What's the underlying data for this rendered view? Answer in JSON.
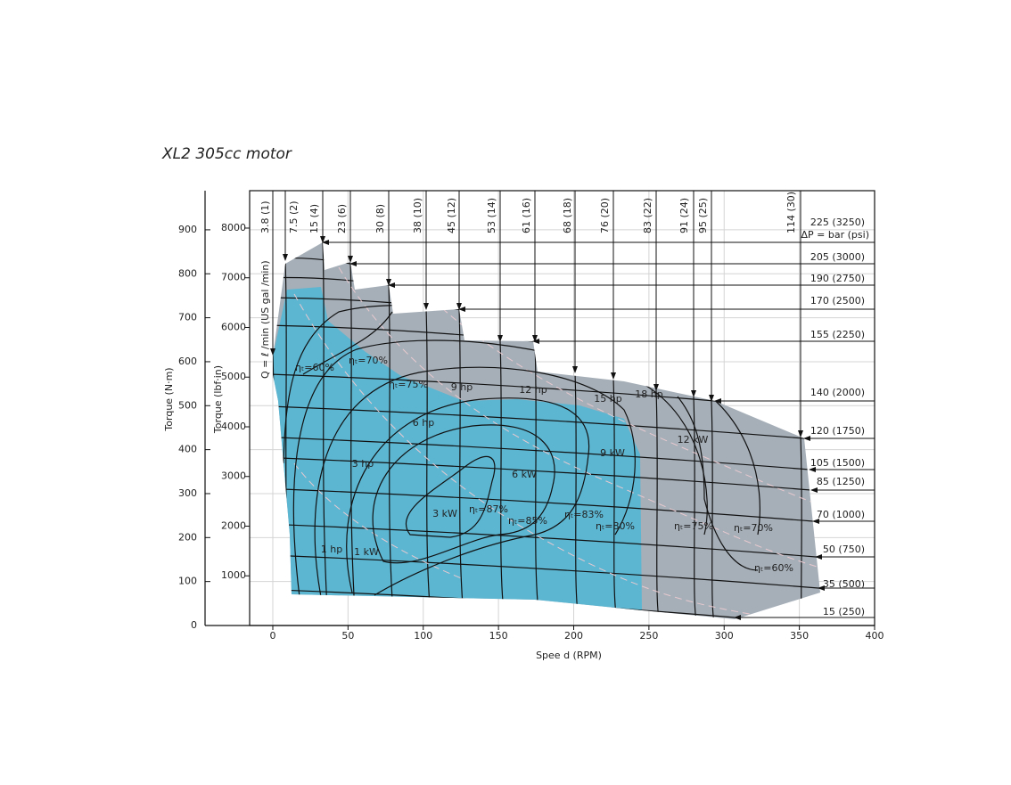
{
  "chart_data": {
    "type": "performance-map",
    "title": "XL2 305cc motor",
    "x_label": "Spee d (RPM)",
    "y_label": "Torque (N·m)",
    "y2_label": "Torque (lbf·in)",
    "xlim": [
      -15.4,
      400
    ],
    "xticks": [
      0,
      50,
      100,
      150,
      200,
      250,
      300,
      350,
      400
    ],
    "ylim": [
      0,
      989
    ],
    "yticks": [
      0,
      100,
      200,
      300,
      400,
      500,
      600,
      700,
      800,
      900
    ],
    "y2lim": [
      0,
      8753
    ],
    "y2ticks": [
      1000,
      2000,
      3000,
      4000,
      5000,
      6000,
      7000,
      8000
    ],
    "grid": true,
    "flow_axis_label": "Q = ℓ /min (US gal /min)",
    "flow_labels": [
      "3.8 (1)",
      "7.5 (2)",
      "15 (4)",
      "23 (6)",
      "30 (8)",
      "38 (10)",
      "45 (12)",
      "53 (14)",
      "61 (16)",
      "68 (18)",
      "76 (20)",
      "83 (22)",
      "91 (24)",
      "95 (25)",
      "114 (30)"
    ],
    "pressure_axis_label": "ΔP = bar (psi)",
    "pressure_labels": [
      "225 (3250)",
      "205 (3000)",
      "190 (2750)",
      "170 (2500)",
      "155 (2250)",
      "140 (2000)",
      "120 (1750)",
      "105 (1500)",
      "85 (1250)",
      "70 (1000)",
      "50 (750)",
      "35 (500)",
      "15 (250)"
    ],
    "annotations": [
      "ηₜ=60%",
      "ηₜ=70%",
      "ηₜ=75%",
      "9 hp",
      "12 hp",
      "15 hp",
      "18 hp",
      "6 hp",
      "12 kW",
      "9 kW",
      "3 hp",
      "6 kW",
      "ηₜ=87%",
      "3 kW",
      "ηₜ=85%",
      "ηₜ=83%",
      "ηₜ=80%",
      "ηₜ=75%",
      "ηₜ=70%",
      "1 hp",
      "1 kW",
      "ηₜ=60%"
    ]
  }
}
